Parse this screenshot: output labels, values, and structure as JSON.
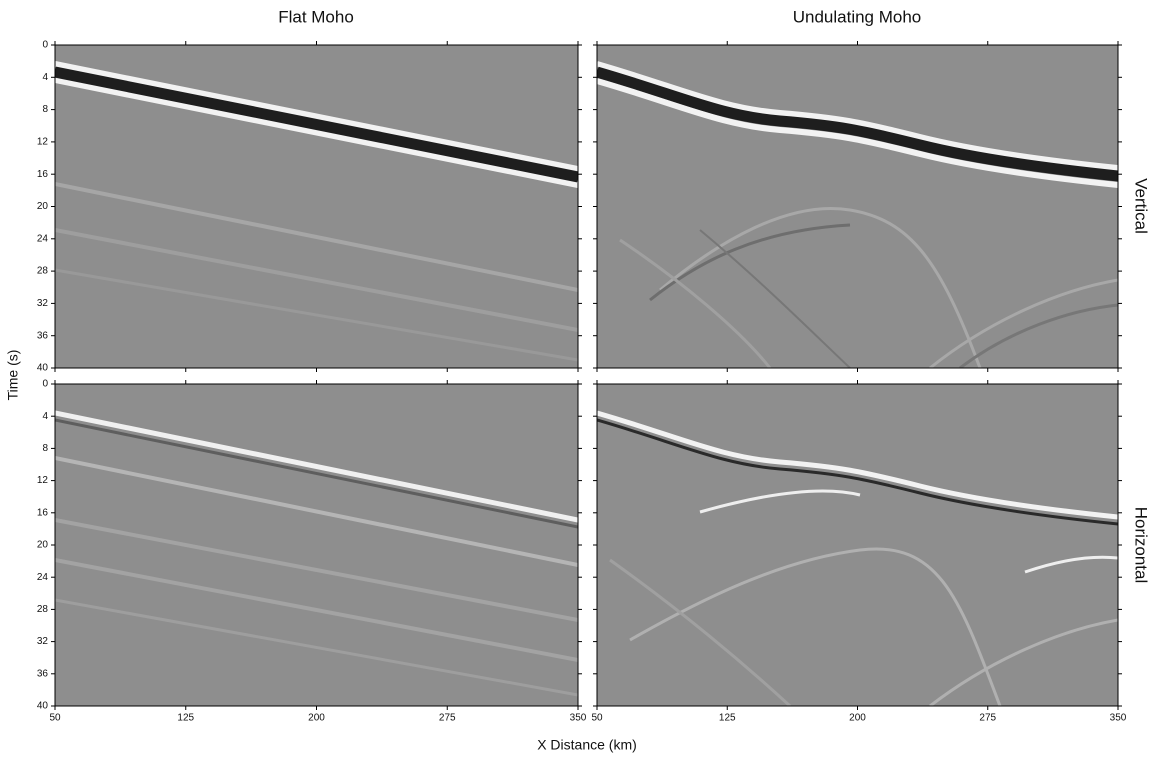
{
  "column_titles": [
    "Flat Moho",
    "Undulating Moho"
  ],
  "row_labels": [
    "Vertical",
    "Horizontal"
  ],
  "ylabel": "Time (s)",
  "xlabel": "X Distance (km)",
  "chart_data": [
    {
      "type": "image",
      "xlim": [
        50,
        350
      ],
      "ylim": [
        40,
        0
      ],
      "xticks": [
        50,
        125,
        200,
        275,
        350
      ],
      "yticks": [
        0,
        4,
        8,
        12,
        16,
        20,
        24,
        28,
        32,
        36,
        40
      ]
    },
    {
      "type": "image",
      "xlim": [
        50,
        350
      ],
      "ylim": [
        40,
        0
      ],
      "xticks": [
        50,
        125,
        200,
        275,
        350
      ],
      "yticks": [
        0,
        4,
        8,
        12,
        16,
        20,
        24,
        28,
        32,
        36,
        40
      ]
    },
    {
      "type": "image",
      "xlim": [
        50,
        350
      ],
      "ylim": [
        40,
        0
      ],
      "xticks": [
        50,
        125,
        200,
        275,
        350
      ],
      "yticks": [
        0,
        4,
        8,
        12,
        16,
        20,
        24,
        28,
        32,
        36,
        40
      ]
    },
    {
      "type": "image",
      "xlim": [
        50,
        350
      ],
      "ylim": [
        40,
        0
      ],
      "xticks": [
        50,
        125,
        200,
        275,
        350
      ],
      "yticks": [
        0,
        4,
        8,
        12,
        16,
        20,
        24,
        28,
        32,
        36,
        40
      ]
    }
  ]
}
